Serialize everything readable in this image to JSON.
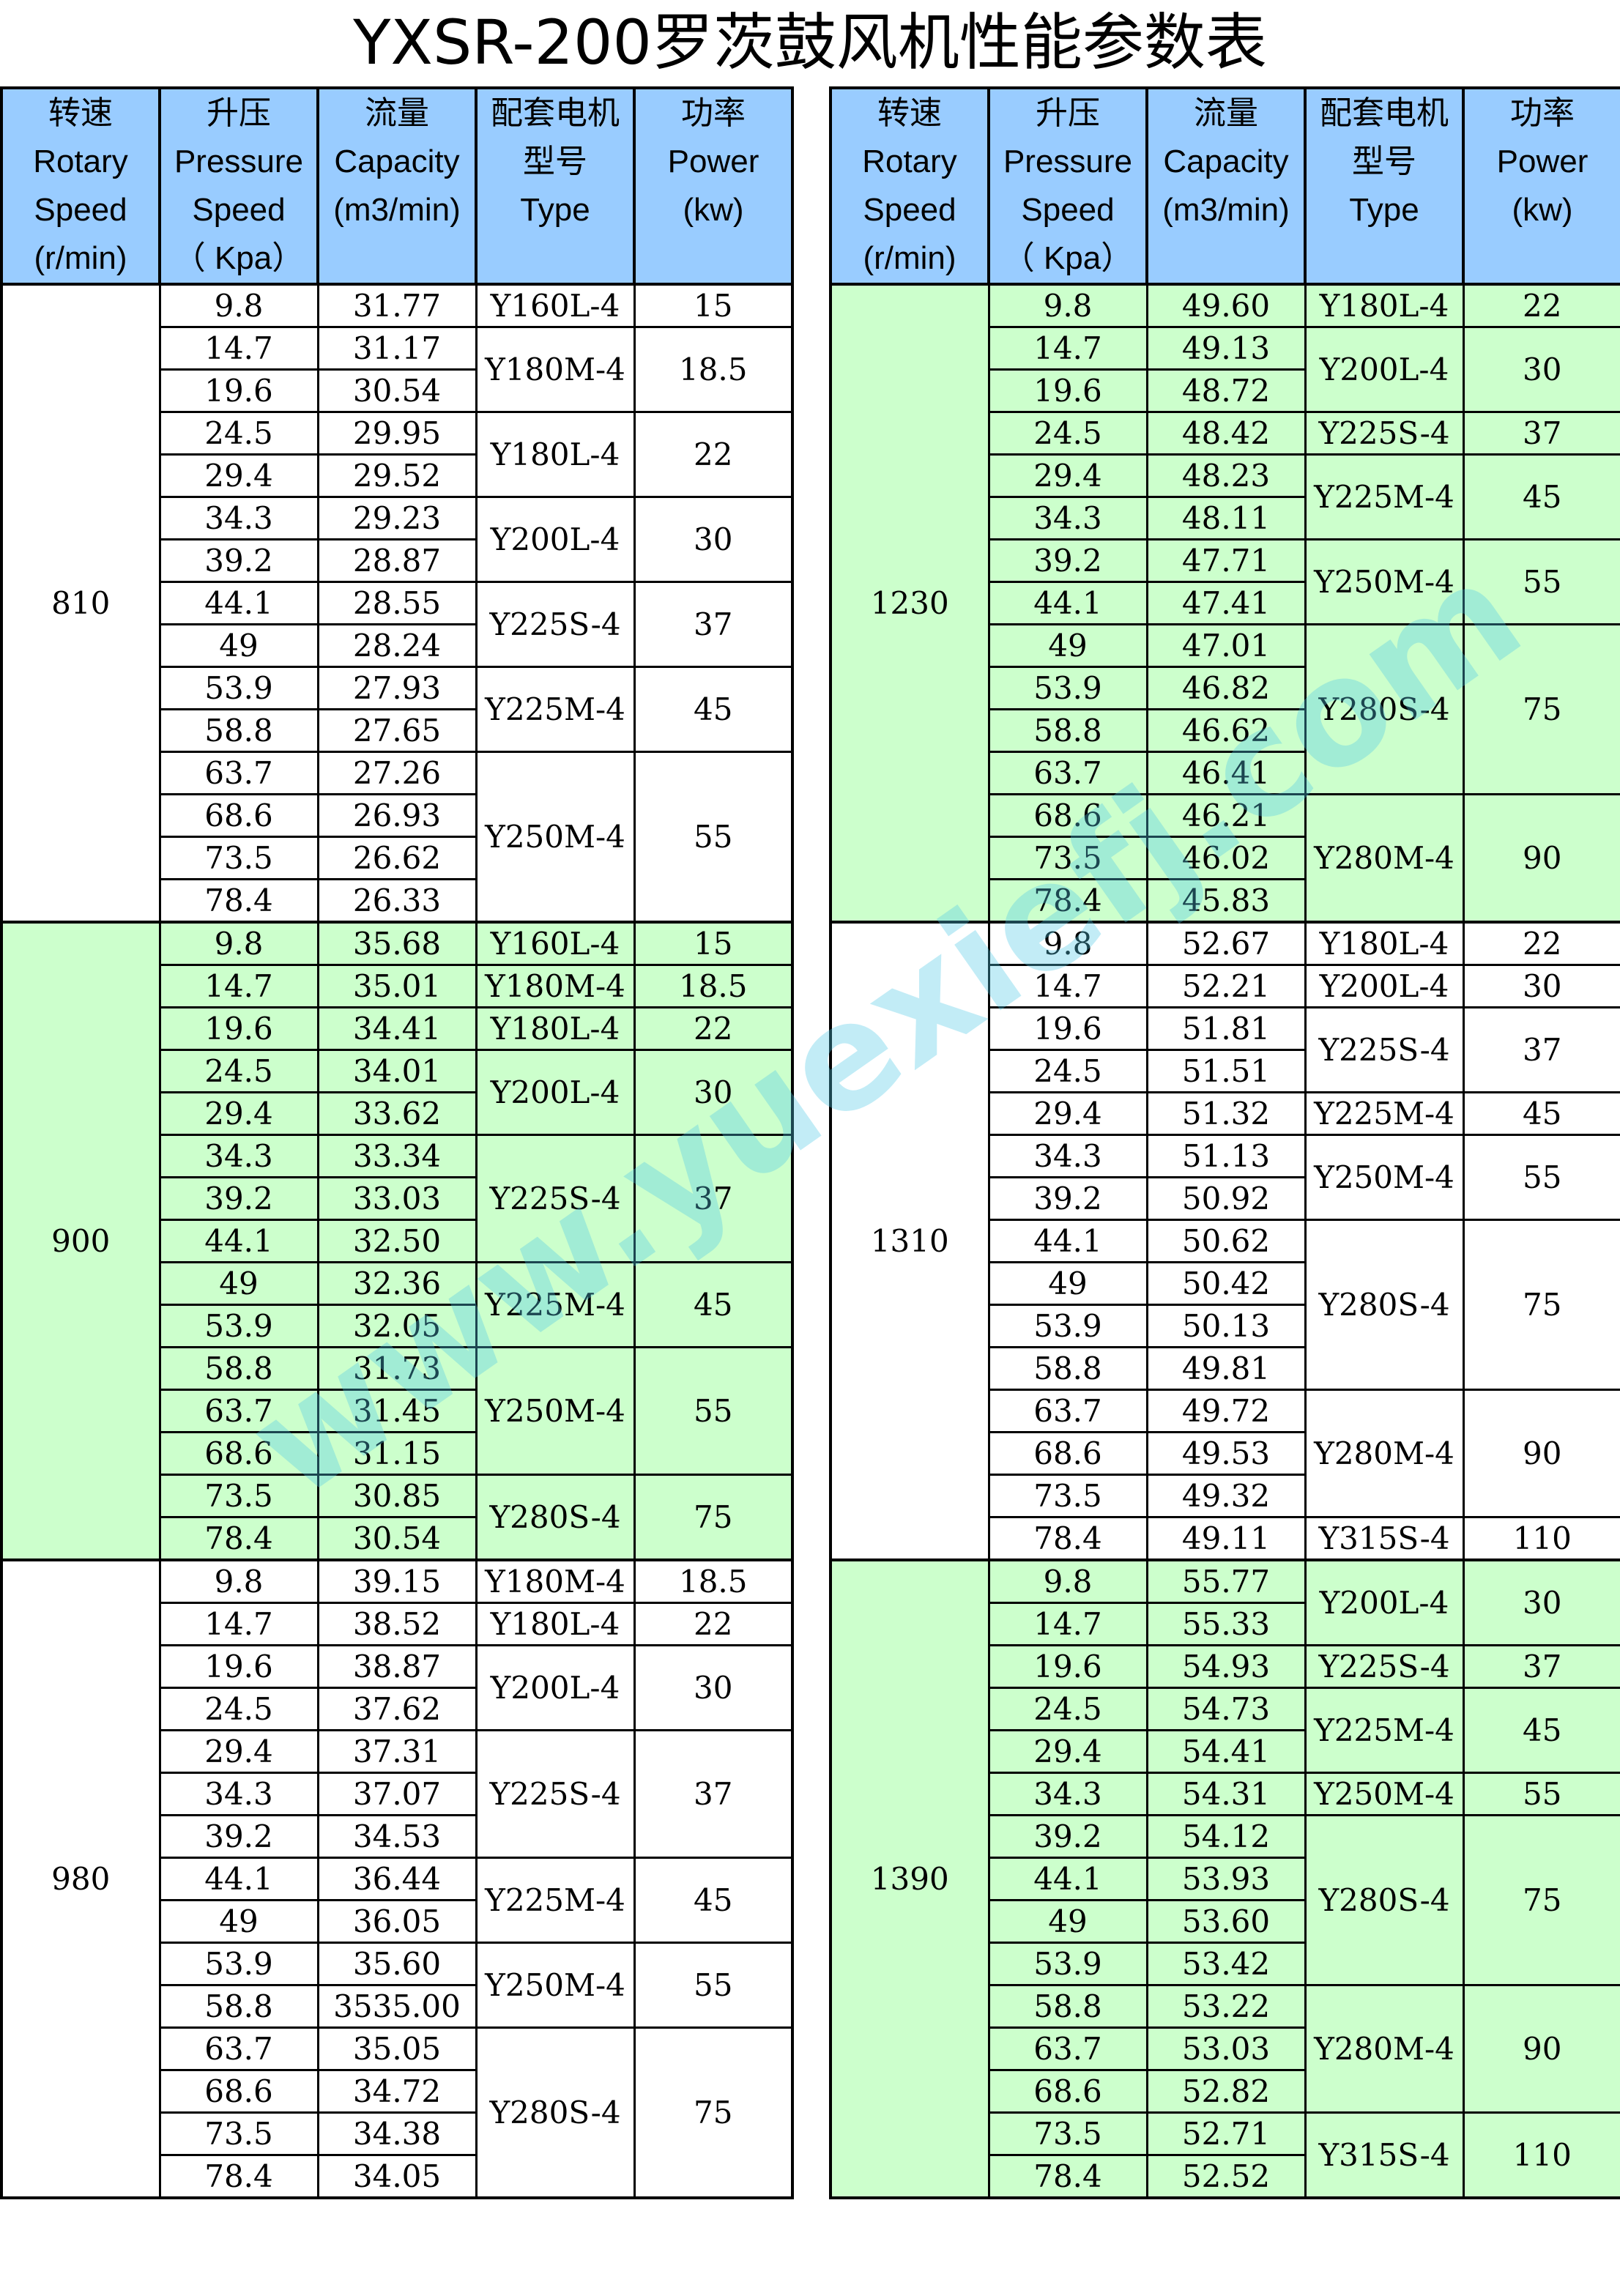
{
  "title": "YXSR-200罗茨鼓风机性能参数表",
  "watermark": "www.yuexiefj.com",
  "colors": {
    "header": "#99ccff",
    "green_band": "#ccffcc",
    "white_band": "#ffffff"
  },
  "headers": [
    [
      "转速",
      "Rotary",
      "Speed",
      "(r/min)"
    ],
    [
      "升压",
      "Pressure",
      "Speed",
      "（ Kpa）"
    ],
    [
      "流量",
      "Capacity",
      "(m3/min)"
    ],
    [
      "配套电机",
      "型号",
      "Type"
    ],
    [
      "功率",
      "Power",
      "(kw)"
    ]
  ],
  "tables": [
    {
      "groups": [
        {
          "speed": "810",
          "band": "white",
          "rows": [
            [
              "9.8",
              "31.77"
            ],
            [
              "14.7",
              "31.17"
            ],
            [
              "19.6",
              "30.54"
            ],
            [
              "24.5",
              "29.95"
            ],
            [
              "29.4",
              "29.52"
            ],
            [
              "34.3",
              "29.23"
            ],
            [
              "39.2",
              "28.87"
            ],
            [
              "44.1",
              "28.55"
            ],
            [
              "49",
              "28.24"
            ],
            [
              "53.9",
              "27.93"
            ],
            [
              "58.8",
              "27.65"
            ],
            [
              "63.7",
              "27.26"
            ],
            [
              "68.6",
              "26.93"
            ],
            [
              "73.5",
              "26.62"
            ],
            [
              "78.4",
              "26.33"
            ]
          ],
          "motors": [
            {
              "type": "Y160L-4",
              "power": "15",
              "rows": 1
            },
            {
              "type": "Y180M-4",
              "power": "18.5",
              "rows": 2
            },
            {
              "type": "Y180L-4",
              "power": "22",
              "rows": 2
            },
            {
              "type": "Y200L-4",
              "power": "30",
              "rows": 2
            },
            {
              "type": "Y225S-4",
              "power": "37",
              "rows": 2
            },
            {
              "type": "Y225M-4",
              "power": "45",
              "rows": 2
            },
            {
              "type": "Y250M-4",
              "power": "55",
              "rows": 4
            }
          ]
        },
        {
          "speed": "900",
          "band": "green",
          "rows": [
            [
              "9.8",
              "35.68"
            ],
            [
              "14.7",
              "35.01"
            ],
            [
              "19.6",
              "34.41"
            ],
            [
              "24.5",
              "34.01"
            ],
            [
              "29.4",
              "33.62"
            ],
            [
              "34.3",
              "33.34"
            ],
            [
              "39.2",
              "33.03"
            ],
            [
              "44.1",
              "32.50"
            ],
            [
              "49",
              "32.36"
            ],
            [
              "53.9",
              "32.05"
            ],
            [
              "58.8",
              "31.73"
            ],
            [
              "63.7",
              "31.45"
            ],
            [
              "68.6",
              "31.15"
            ],
            [
              "73.5",
              "30.85"
            ],
            [
              "78.4",
              "30.54"
            ]
          ],
          "motors": [
            {
              "type": "Y160L-4",
              "power": "15",
              "rows": 1
            },
            {
              "type": "Y180M-4",
              "power": "18.5",
              "rows": 1
            },
            {
              "type": "Y180L-4",
              "power": "22",
              "rows": 1
            },
            {
              "type": "Y200L-4",
              "power": "30",
              "rows": 2
            },
            {
              "type": "Y225S-4",
              "power": "37",
              "rows": 3
            },
            {
              "type": "Y225M-4",
              "power": "45",
              "rows": 2
            },
            {
              "type": "Y250M-4",
              "power": "55",
              "rows": 3
            },
            {
              "type": "Y280S-4",
              "power": "75",
              "rows": 2
            }
          ]
        },
        {
          "speed": "980",
          "band": "white",
          "rows": [
            [
              "9.8",
              "39.15"
            ],
            [
              "14.7",
              "38.52"
            ],
            [
              "19.6",
              "38.87"
            ],
            [
              "24.5",
              "37.62"
            ],
            [
              "29.4",
              "37.31"
            ],
            [
              "34.3",
              "37.07"
            ],
            [
              "39.2",
              "34.53"
            ],
            [
              "44.1",
              "36.44"
            ],
            [
              "49",
              "36.05"
            ],
            [
              "53.9",
              "35.60"
            ],
            [
              "58.8",
              "3535.00"
            ],
            [
              "63.7",
              "35.05"
            ],
            [
              "68.6",
              "34.72"
            ],
            [
              "73.5",
              "34.38"
            ],
            [
              "78.4",
              "34.05"
            ]
          ],
          "motors": [
            {
              "type": "Y180M-4",
              "power": "18.5",
              "rows": 1
            },
            {
              "type": "Y180L-4",
              "power": "22",
              "rows": 1
            },
            {
              "type": "Y200L-4",
              "power": "30",
              "rows": 2
            },
            {
              "type": "Y225S-4",
              "power": "37",
              "rows": 3
            },
            {
              "type": "Y225M-4",
              "power": "45",
              "rows": 2
            },
            {
              "type": "Y250M-4",
              "power": "55",
              "rows": 2
            },
            {
              "type": "Y280S-4",
              "power": "75",
              "rows": 4
            }
          ]
        }
      ]
    },
    {
      "groups": [
        {
          "speed": "1230",
          "band": "green",
          "rows": [
            [
              "9.8",
              "49.60"
            ],
            [
              "14.7",
              "49.13"
            ],
            [
              "19.6",
              "48.72"
            ],
            [
              "24.5",
              "48.42"
            ],
            [
              "29.4",
              "48.23"
            ],
            [
              "34.3",
              "48.11"
            ],
            [
              "39.2",
              "47.71"
            ],
            [
              "44.1",
              "47.41"
            ],
            [
              "49",
              "47.01"
            ],
            [
              "53.9",
              "46.82"
            ],
            [
              "58.8",
              "46.62"
            ],
            [
              "63.7",
              "46.41"
            ],
            [
              "68.6",
              "46.21"
            ],
            [
              "73.5",
              "46.02"
            ],
            [
              "78.4",
              "45.83"
            ]
          ],
          "motors": [
            {
              "type": "Y180L-4",
              "power": "22",
              "rows": 1
            },
            {
              "type": "Y200L-4",
              "power": "30",
              "rows": 2
            },
            {
              "type": "Y225S-4",
              "power": "37",
              "rows": 1
            },
            {
              "type": "Y225M-4",
              "power": "45",
              "rows": 2
            },
            {
              "type": "Y250M-4",
              "power": "55",
              "rows": 2
            },
            {
              "type": "Y280S-4",
              "power": "75",
              "rows": 4
            },
            {
              "type": "Y280M-4",
              "power": "90",
              "rows": 3
            }
          ]
        },
        {
          "speed": "1310",
          "band": "white",
          "rows": [
            [
              "9.8",
              "52.67"
            ],
            [
              "14.7",
              "52.21"
            ],
            [
              "19.6",
              "51.81"
            ],
            [
              "24.5",
              "51.51"
            ],
            [
              "29.4",
              "51.32"
            ],
            [
              "34.3",
              "51.13"
            ],
            [
              "39.2",
              "50.92"
            ],
            [
              "44.1",
              "50.62"
            ],
            [
              "49",
              "50.42"
            ],
            [
              "53.9",
              "50.13"
            ],
            [
              "58.8",
              "49.81"
            ],
            [
              "63.7",
              "49.72"
            ],
            [
              "68.6",
              "49.53"
            ],
            [
              "73.5",
              "49.32"
            ],
            [
              "78.4",
              "49.11"
            ]
          ],
          "motors": [
            {
              "type": "Y180L-4",
              "power": "22",
              "rows": 1
            },
            {
              "type": "Y200L-4",
              "power": "30",
              "rows": 1
            },
            {
              "type": "Y225S-4",
              "power": "37",
              "rows": 2
            },
            {
              "type": "Y225M-4",
              "power": "45",
              "rows": 1
            },
            {
              "type": "Y250M-4",
              "power": "55",
              "rows": 2
            },
            {
              "type": "Y280S-4",
              "power": "75",
              "rows": 4
            },
            {
              "type": "Y280M-4",
              "power": "90",
              "rows": 3
            },
            {
              "type": "Y315S-4",
              "power": "110",
              "rows": 1
            }
          ]
        },
        {
          "speed": "1390",
          "band": "green",
          "rows": [
            [
              "9.8",
              "55.77"
            ],
            [
              "14.7",
              "55.33"
            ],
            [
              "19.6",
              "54.93"
            ],
            [
              "24.5",
              "54.73"
            ],
            [
              "29.4",
              "54.41"
            ],
            [
              "34.3",
              "54.31"
            ],
            [
              "39.2",
              "54.12"
            ],
            [
              "44.1",
              "53.93"
            ],
            [
              "49",
              "53.60"
            ],
            [
              "53.9",
              "53.42"
            ],
            [
              "58.8",
              "53.22"
            ],
            [
              "63.7",
              "53.03"
            ],
            [
              "68.6",
              "52.82"
            ],
            [
              "73.5",
              "52.71"
            ],
            [
              "78.4",
              "52.52"
            ]
          ],
          "motors": [
            {
              "type": "Y200L-4",
              "power": "30",
              "rows": 2
            },
            {
              "type": "Y225S-4",
              "power": "37",
              "rows": 1
            },
            {
              "type": "Y225M-4",
              "power": "45",
              "rows": 2
            },
            {
              "type": "Y250M-4",
              "power": "55",
              "rows": 1
            },
            {
              "type": "Y280S-4",
              "power": "75",
              "rows": 4
            },
            {
              "type": "Y280M-4",
              "power": "90",
              "rows": 3
            },
            {
              "type": "Y315S-4",
              "power": "110",
              "rows": 2
            }
          ]
        }
      ]
    }
  ]
}
